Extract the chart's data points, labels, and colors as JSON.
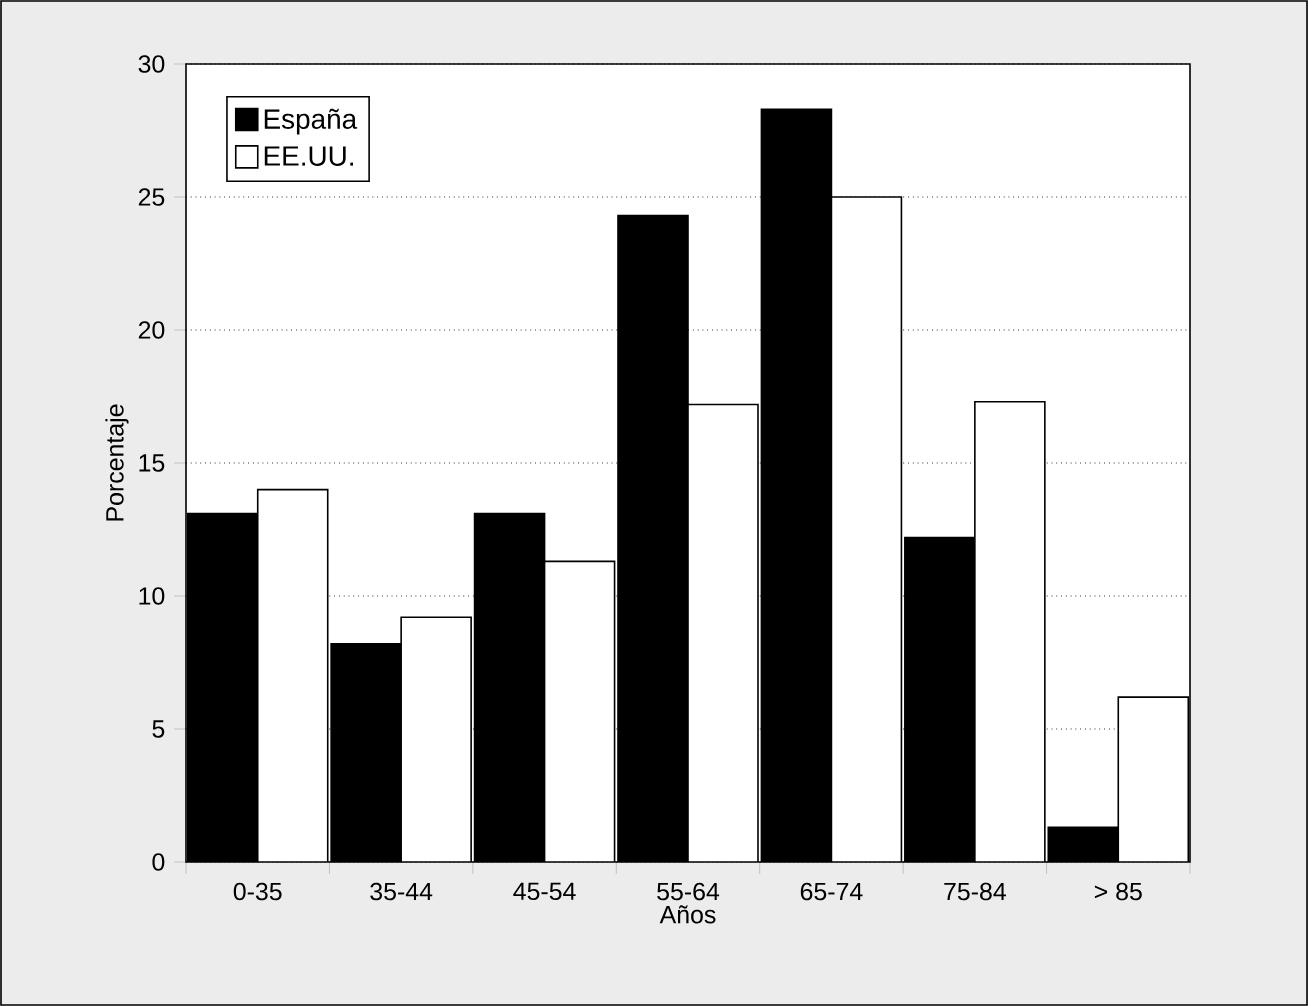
{
  "chart_data": {
    "type": "bar",
    "xlabel": "Años",
    "ylabel": "Porcentaje",
    "categories": [
      "0-35",
      "35-44",
      "45-54",
      "55-64",
      "65-74",
      "75-84",
      "> 85"
    ],
    "series": [
      {
        "name": "España",
        "color": "#000000",
        "values": [
          13.1,
          8.2,
          13.1,
          24.3,
          28.3,
          12.2,
          1.3
        ]
      },
      {
        "name": "EE.UU.",
        "color": "#ffffff",
        "values": [
          14.0,
          9.2,
          11.3,
          17.2,
          25.0,
          17.3,
          6.2
        ]
      }
    ],
    "ylim": [
      0,
      30
    ],
    "yticks": [
      0,
      5,
      10,
      15,
      20,
      25,
      30
    ],
    "grid": "y",
    "legend": "top left"
  }
}
